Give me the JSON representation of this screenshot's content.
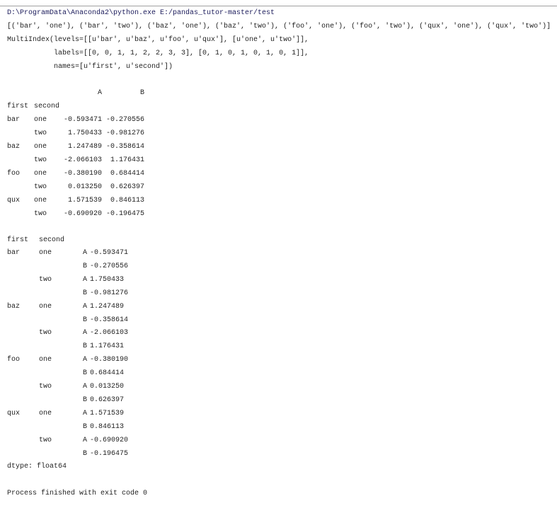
{
  "console": {
    "command": "D:\\ProgramData\\Anaconda2\\python.exe E:/pandas_tutor-master/test",
    "tuples": "[('bar', 'one'), ('bar', 'two'), ('baz', 'one'), ('baz', 'two'), ('foo', 'one'), ('foo', 'two'), ('qux', 'one'), ('qux', 'two')]",
    "multiindex": [
      "MultiIndex(levels=[[u'bar', u'baz', u'foo', u'qux'], [u'one', u'two']],",
      "           labels=[[0, 0, 1, 1, 2, 2, 3, 3], [0, 1, 0, 1, 0, 1, 0, 1]],",
      "           names=[u'first', u'second'])"
    ],
    "dataframe": {
      "columns": [
        "A",
        "B"
      ],
      "index_names": [
        "first",
        "second"
      ],
      "rows": [
        {
          "first": "bar",
          "second": "one",
          "A": "-0.593471",
          "B": "-0.270556"
        },
        {
          "first": "",
          "second": "two",
          "A": "1.750433",
          "B": "-0.981276"
        },
        {
          "first": "baz",
          "second": "one",
          "A": "1.247489",
          "B": "-0.358614"
        },
        {
          "first": "",
          "second": "two",
          "A": "-2.066103",
          "B": "1.176431"
        },
        {
          "first": "foo",
          "second": "one",
          "A": "-0.380190",
          "B": "0.684414"
        },
        {
          "first": "",
          "second": "two",
          "A": "0.013250",
          "B": "0.626397"
        },
        {
          "first": "qux",
          "second": "one",
          "A": "1.571539",
          "B": "0.846113"
        },
        {
          "first": "",
          "second": "two",
          "A": "-0.690920",
          "B": "-0.196475"
        }
      ]
    },
    "series": {
      "index_names": [
        "first",
        "second"
      ],
      "rows": [
        {
          "first": "bar",
          "second": "one",
          "key": "A",
          "value": "-0.593471"
        },
        {
          "first": "",
          "second": "",
          "key": "B",
          "value": "-0.270556"
        },
        {
          "first": "",
          "second": "two",
          "key": "A",
          "value": "1.750433"
        },
        {
          "first": "",
          "second": "",
          "key": "B",
          "value": "-0.981276"
        },
        {
          "first": "baz",
          "second": "one",
          "key": "A",
          "value": "1.247489"
        },
        {
          "first": "",
          "second": "",
          "key": "B",
          "value": "-0.358614"
        },
        {
          "first": "",
          "second": "two",
          "key": "A",
          "value": "-2.066103"
        },
        {
          "first": "",
          "second": "",
          "key": "B",
          "value": "1.176431"
        },
        {
          "first": "foo",
          "second": "one",
          "key": "A",
          "value": "-0.380190"
        },
        {
          "first": "",
          "second": "",
          "key": "B",
          "value": "0.684414"
        },
        {
          "first": "",
          "second": "two",
          "key": "A",
          "value": "0.013250"
        },
        {
          "first": "",
          "second": "",
          "key": "B",
          "value": "0.626397"
        },
        {
          "first": "qux",
          "second": "one",
          "key": "A",
          "value": "1.571539"
        },
        {
          "first": "",
          "second": "",
          "key": "B",
          "value": "0.846113"
        },
        {
          "first": "",
          "second": "two",
          "key": "A",
          "value": "-0.690920"
        },
        {
          "first": "",
          "second": "",
          "key": "B",
          "value": "-0.196475"
        }
      ],
      "dtype": "dtype: float64"
    },
    "exit_message": "Process finished with exit code 0"
  }
}
